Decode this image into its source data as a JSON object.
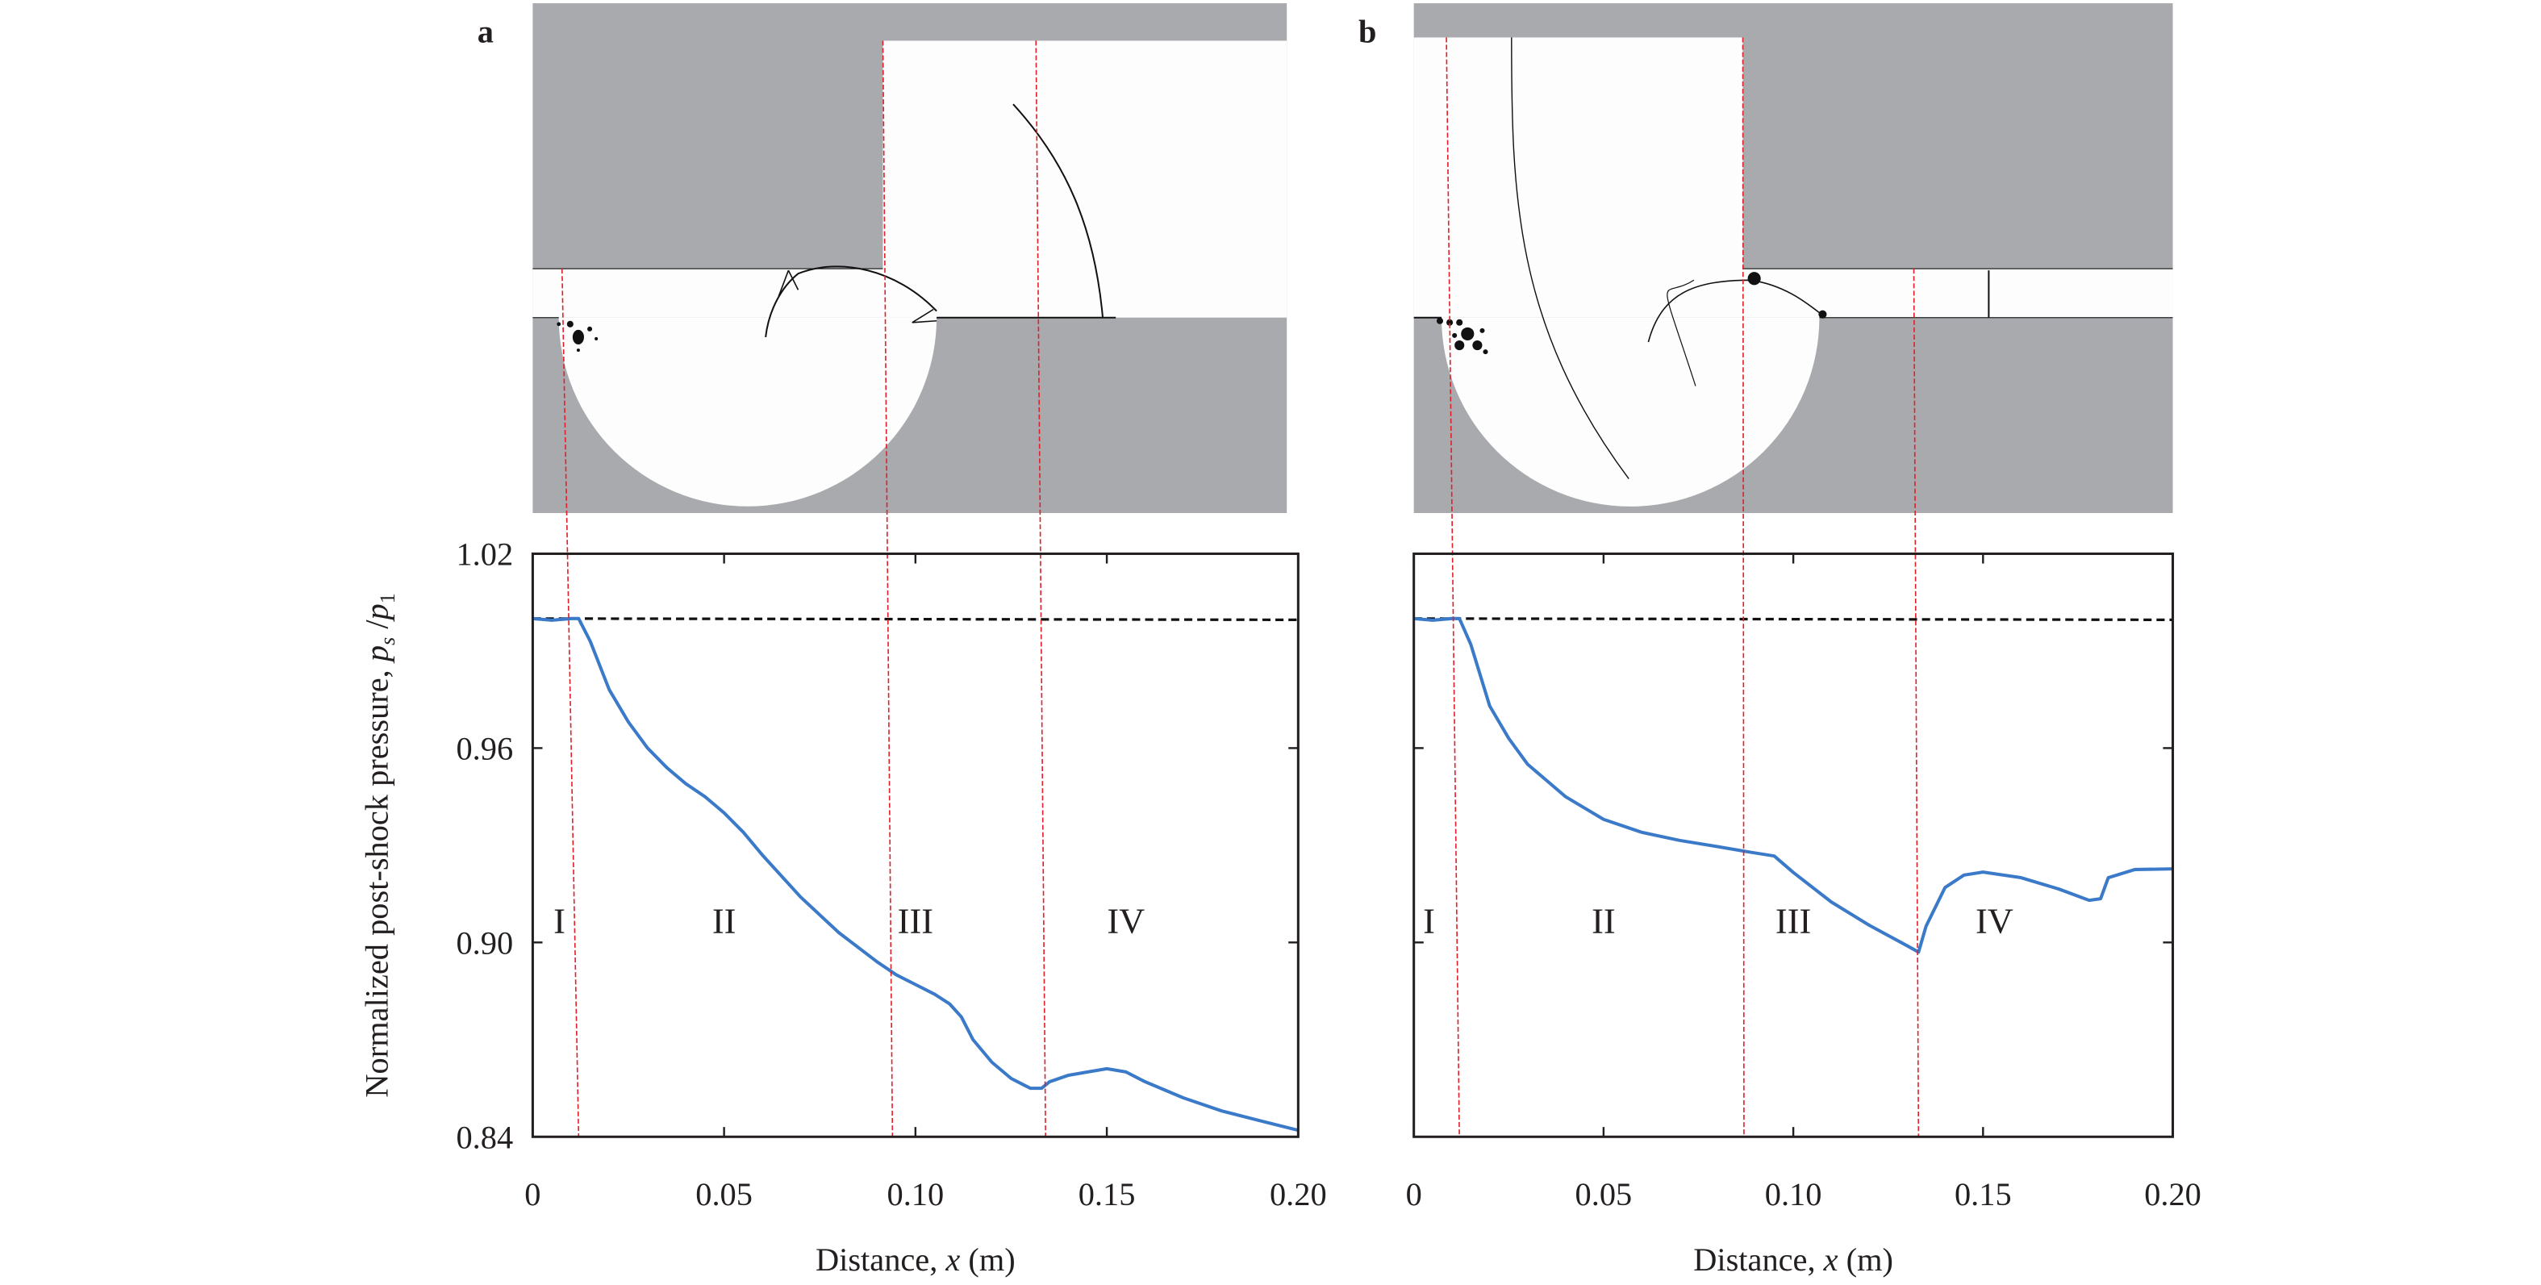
{
  "colors": {
    "curve": "#3a7ac8",
    "boundary": "#e0202a",
    "reference": "#111111",
    "wall": "#a9aaae",
    "axis": "#231f20"
  },
  "chart_data": [
    {
      "type": "line",
      "panel_label": "a",
      "xlabel": "Distance, x (m)",
      "ylabel": "Normalized post-shock pressure, p_s /p_1",
      "xlim": [
        0,
        0.2
      ],
      "ylim": [
        0.84,
        1.02
      ],
      "xticks": [
        0,
        0.05,
        0.1,
        0.15,
        0.2
      ],
      "xtick_labels": [
        "0",
        "0.05",
        "0.10",
        "0.15",
        "0.20"
      ],
      "yticks": [
        1.02,
        0.96,
        0.9,
        0.84
      ],
      "ytick_labels": [
        "1.02",
        "0.96",
        "0.90",
        "0.84"
      ],
      "grid": false,
      "reference_line": {
        "y": 1.0,
        "style": "dashed"
      },
      "region_boundaries": [
        0.012,
        0.094,
        0.134
      ],
      "regions": [
        {
          "label": "I",
          "x": 0.007
        },
        {
          "label": "II",
          "x": 0.05
        },
        {
          "label": "III",
          "x": 0.1
        },
        {
          "label": "IV",
          "x": 0.155
        }
      ],
      "series": [
        {
          "x": [
            0,
            0.005,
            0.01,
            0.012,
            0.015,
            0.02,
            0.025,
            0.03,
            0.035,
            0.04,
            0.045,
            0.048,
            0.05,
            0.055,
            0.06,
            0.07,
            0.08,
            0.09,
            0.095,
            0.1,
            0.105,
            0.109,
            0.112,
            0.115,
            0.12,
            0.125,
            0.13,
            0.133,
            0.135,
            0.14,
            0.145,
            0.15,
            0.155,
            0.16,
            0.17,
            0.18,
            0.19,
            0.2
          ],
          "y": [
            1.0,
            0.9995,
            1.0,
            1.0,
            0.993,
            0.978,
            0.968,
            0.96,
            0.954,
            0.949,
            0.945,
            0.942,
            0.94,
            0.934,
            0.927,
            0.914,
            0.903,
            0.894,
            0.89,
            0.887,
            0.884,
            0.881,
            0.877,
            0.87,
            0.863,
            0.858,
            0.855,
            0.855,
            0.857,
            0.859,
            0.86,
            0.861,
            0.86,
            0.857,
            0.852,
            0.848,
            0.845,
            0.842
          ]
        }
      ]
    },
    {
      "type": "line",
      "panel_label": "b",
      "xlabel": "Distance, x (m)",
      "xlim": [
        0,
        0.2
      ],
      "ylim": [
        0.84,
        1.02
      ],
      "xticks": [
        0,
        0.05,
        0.1,
        0.15,
        0.2
      ],
      "xtick_labels": [
        "0",
        "0.05",
        "0.10",
        "0.15",
        "0.20"
      ],
      "yticks": [
        1.02,
        0.96,
        0.9,
        0.84
      ],
      "grid": false,
      "reference_line": {
        "y": 1.0,
        "style": "dashed"
      },
      "region_boundaries": [
        0.012,
        0.087,
        0.133
      ],
      "regions": [
        {
          "label": "I",
          "x": 0.004
        },
        {
          "label": "II",
          "x": 0.05
        },
        {
          "label": "III",
          "x": 0.1
        },
        {
          "label": "IV",
          "x": 0.153
        }
      ],
      "series": [
        {
          "x": [
            0,
            0.005,
            0.01,
            0.012,
            0.015,
            0.02,
            0.025,
            0.03,
            0.035,
            0.04,
            0.05,
            0.06,
            0.07,
            0.08,
            0.088,
            0.095,
            0.1,
            0.11,
            0.12,
            0.13,
            0.133,
            0.135,
            0.14,
            0.145,
            0.15,
            0.16,
            0.17,
            0.178,
            0.181,
            0.183,
            0.19,
            0.2
          ],
          "y": [
            1.0,
            0.9995,
            1.0,
            1.0,
            0.992,
            0.973,
            0.963,
            0.955,
            0.95,
            0.945,
            0.938,
            0.934,
            0.9315,
            0.9296,
            0.928,
            0.9267,
            0.9216,
            0.9125,
            0.9053,
            0.899,
            0.897,
            0.905,
            0.917,
            0.9208,
            0.9217,
            0.92,
            0.9165,
            0.913,
            0.9135,
            0.92,
            0.9225,
            0.9227
          ]
        }
      ]
    }
  ]
}
